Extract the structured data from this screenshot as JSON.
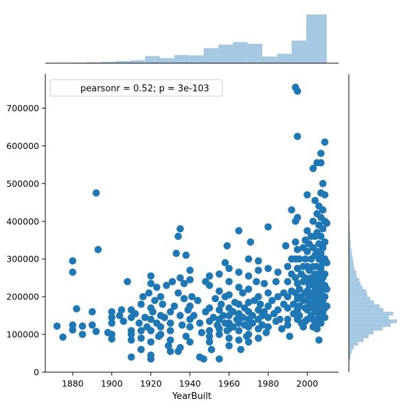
{
  "chart_data": {
    "type": "scatter",
    "xlabel": "YearBuilt",
    "ylabel": "",
    "xlim": [
      1866,
      2016
    ],
    "ylim": [
      0,
      790000
    ],
    "x_ticks": [
      1880,
      1900,
      1920,
      1940,
      1960,
      1980,
      2000
    ],
    "y_ticks": [
      0,
      100000,
      200000,
      300000,
      400000,
      500000,
      600000,
      700000
    ],
    "legend": {
      "text": "pearsonr = 0.52; p = 3e-103",
      "placement": "top-left"
    },
    "point_color": "#1f77b4",
    "hist_color": "#a6c8e0",
    "scatter_points": [
      [
        1872,
        122000
      ],
      [
        1875,
        93000
      ],
      [
        1880,
        295000
      ],
      [
        1880,
        265000
      ],
      [
        1880,
        125000
      ],
      [
        1880,
        112000
      ],
      [
        1882,
        168000
      ],
      [
        1885,
        100000
      ],
      [
        1885,
        122000
      ],
      [
        1890,
        160000
      ],
      [
        1890,
        125000
      ],
      [
        1892,
        475000
      ],
      [
        1892,
        108000
      ],
      [
        1893,
        325000
      ],
      [
        1898,
        105000
      ],
      [
        1900,
        160000
      ],
      [
        1900,
        145000
      ],
      [
        1900,
        130000
      ],
      [
        1900,
        100000
      ],
      [
        1900,
        88000
      ],
      [
        1904,
        150000
      ],
      [
        1905,
        165000
      ],
      [
        1906,
        135000
      ],
      [
        1908,
        240000
      ],
      [
        1910,
        165000
      ],
      [
        1910,
        145000
      ],
      [
        1910,
        110000
      ],
      [
        1910,
        100000
      ],
      [
        1910,
        85000
      ],
      [
        1910,
        40000
      ],
      [
        1912,
        155000
      ],
      [
        1914,
        130000
      ],
      [
        1915,
        180000
      ],
      [
        1915,
        110000
      ],
      [
        1915,
        90000
      ],
      [
        1915,
        60000
      ],
      [
        1916,
        200000
      ],
      [
        1917,
        145000
      ],
      [
        1918,
        120000
      ],
      [
        1919,
        210000
      ],
      [
        1920,
        255000
      ],
      [
        1920,
        235000
      ],
      [
        1920,
        170000
      ],
      [
        1920,
        140000
      ],
      [
        1920,
        110000
      ],
      [
        1920,
        80000
      ],
      [
        1920,
        45000
      ],
      [
        1920,
        35000
      ],
      [
        1921,
        160000
      ],
      [
        1922,
        190000
      ],
      [
        1923,
        130000
      ],
      [
        1923,
        225000
      ],
      [
        1924,
        95000
      ],
      [
        1925,
        200000
      ],
      [
        1925,
        150000
      ],
      [
        1925,
        120000
      ],
      [
        1925,
        100000
      ],
      [
        1926,
        180000
      ],
      [
        1927,
        145000
      ],
      [
        1928,
        230000
      ],
      [
        1929,
        70000
      ],
      [
        1930,
        160000
      ],
      [
        1930,
        130000
      ],
      [
        1930,
        110000
      ],
      [
        1930,
        85000
      ],
      [
        1930,
        55000
      ],
      [
        1931,
        240000
      ],
      [
        1932,
        175000
      ],
      [
        1933,
        315000
      ],
      [
        1934,
        360000
      ],
      [
        1934,
        210000
      ],
      [
        1934,
        55000
      ],
      [
        1935,
        380000
      ],
      [
        1935,
        250000
      ],
      [
        1935,
        150000
      ],
      [
        1935,
        65000
      ],
      [
        1936,
        125000
      ],
      [
        1937,
        195000
      ],
      [
        1937,
        235000
      ],
      [
        1938,
        310000
      ],
      [
        1938,
        95000
      ],
      [
        1939,
        165000
      ],
      [
        1940,
        270000
      ],
      [
        1940,
        245000
      ],
      [
        1940,
        175000
      ],
      [
        1940,
        140000
      ],
      [
        1940,
        120000
      ],
      [
        1940,
        80000
      ],
      [
        1941,
        200000
      ],
      [
        1942,
        150000
      ],
      [
        1944,
        190000
      ],
      [
        1945,
        130000
      ],
      [
        1945,
        40000
      ],
      [
        1946,
        105000
      ],
      [
        1947,
        35000
      ],
      [
        1948,
        240000
      ],
      [
        1948,
        160000
      ],
      [
        1950,
        255000
      ],
      [
        1950,
        230000
      ],
      [
        1950,
        170000
      ],
      [
        1950,
        135000
      ],
      [
        1950,
        110000
      ],
      [
        1950,
        95000
      ],
      [
        1950,
        80000
      ],
      [
        1951,
        60000
      ],
      [
        1952,
        145000
      ],
      [
        1953,
        195000
      ],
      [
        1954,
        125000
      ],
      [
        1955,
        260000
      ],
      [
        1955,
        215000
      ],
      [
        1955,
        165000
      ],
      [
        1955,
        140000
      ],
      [
        1955,
        115000
      ],
      [
        1955,
        100000
      ],
      [
        1955,
        35000
      ],
      [
        1956,
        180000
      ],
      [
        1957,
        150000
      ],
      [
        1958,
        290000
      ],
      [
        1958,
        200000
      ],
      [
        1958,
        130000
      ],
      [
        1959,
        110000
      ],
      [
        1959,
        335000
      ],
      [
        1960,
        275000
      ],
      [
        1960,
        240000
      ],
      [
        1960,
        205000
      ],
      [
        1960,
        170000
      ],
      [
        1960,
        150000
      ],
      [
        1960,
        130000
      ],
      [
        1960,
        115000
      ],
      [
        1960,
        90000
      ],
      [
        1960,
        70000
      ],
      [
        1962,
        160000
      ],
      [
        1962,
        120000
      ],
      [
        1963,
        185000
      ],
      [
        1964,
        140000
      ],
      [
        1965,
        375000
      ],
      [
        1965,
        265000
      ],
      [
        1965,
        225000
      ],
      [
        1965,
        180000
      ],
      [
        1965,
        155000
      ],
      [
        1965,
        130000
      ],
      [
        1965,
        110000
      ],
      [
        1965,
        85000
      ],
      [
        1966,
        60000
      ],
      [
        1967,
        210000
      ],
      [
        1967,
        145000
      ],
      [
        1968,
        170000
      ],
      [
        1968,
        125000
      ],
      [
        1969,
        95000
      ],
      [
        1970,
        300000
      ],
      [
        1970,
        255000
      ],
      [
        1970,
        220000
      ],
      [
        1970,
        185000
      ],
      [
        1970,
        160000
      ],
      [
        1970,
        140000
      ],
      [
        1970,
        120000
      ],
      [
        1970,
        100000
      ],
      [
        1970,
        80000
      ],
      [
        1971,
        345000
      ],
      [
        1972,
        150000
      ],
      [
        1972,
        130000
      ],
      [
        1973,
        190000
      ],
      [
        1974,
        240000
      ],
      [
        1975,
        295000
      ],
      [
        1975,
        270000
      ],
      [
        1975,
        200000
      ],
      [
        1975,
        165000
      ],
      [
        1975,
        140000
      ],
      [
        1975,
        115000
      ],
      [
        1975,
        90000
      ],
      [
        1976,
        180000
      ],
      [
        1977,
        150000
      ],
      [
        1977,
        125000
      ],
      [
        1978,
        235000
      ],
      [
        1978,
        160000
      ],
      [
        1979,
        105000
      ],
      [
        1980,
        385000
      ],
      [
        1980,
        275000
      ],
      [
        1980,
        210000
      ],
      [
        1980,
        175000
      ],
      [
        1980,
        145000
      ],
      [
        1980,
        120000
      ],
      [
        1982,
        190000
      ],
      [
        1983,
        155000
      ],
      [
        1984,
        240000
      ],
      [
        1984,
        135000
      ],
      [
        1985,
        265000
      ],
      [
        1985,
        200000
      ],
      [
        1985,
        165000
      ],
      [
        1986,
        140000
      ],
      [
        1987,
        115000
      ],
      [
        1988,
        210000
      ],
      [
        1988,
        180000
      ],
      [
        1989,
        335000
      ],
      [
        1990,
        280000
      ],
      [
        1990,
        240000
      ],
      [
        1990,
        200000
      ],
      [
        1990,
        170000
      ],
      [
        1990,
        140000
      ],
      [
        1990,
        125000
      ],
      [
        1991,
        95000
      ],
      [
        1992,
        430000
      ],
      [
        1992,
        300000
      ],
      [
        1992,
        260000
      ],
      [
        1992,
        215000
      ],
      [
        1993,
        180000
      ],
      [
        1993,
        155000
      ],
      [
        1994,
        755000
      ],
      [
        1994,
        400000
      ],
      [
        1994,
        345000
      ],
      [
        1994,
        300000
      ],
      [
        1994,
        250000
      ],
      [
        1994,
        210000
      ],
      [
        1995,
        745000
      ],
      [
        1995,
        625000
      ],
      [
        1995,
        410000
      ],
      [
        1995,
        325000
      ],
      [
        1995,
        275000
      ],
      [
        1995,
        235000
      ],
      [
        1995,
        195000
      ],
      [
        1995,
        165000
      ],
      [
        1995,
        140000
      ],
      [
        1996,
        300000
      ],
      [
        1996,
        220000
      ],
      [
        1996,
        175000
      ],
      [
        1996,
        150000
      ],
      [
        1997,
        260000
      ],
      [
        1997,
        200000
      ],
      [
        1997,
        130000
      ],
      [
        1998,
        330000
      ],
      [
        1998,
        280000
      ],
      [
        1998,
        240000
      ],
      [
        1998,
        190000
      ],
      [
        1998,
        120000
      ],
      [
        1999,
        350000
      ],
      [
        1999,
        300000
      ],
      [
        1999,
        250000
      ],
      [
        1999,
        210000
      ],
      [
        1999,
        170000
      ],
      [
        1999,
        135000
      ],
      [
        2000,
        470000
      ],
      [
        2000,
        375000
      ],
      [
        2000,
        320000
      ],
      [
        2000,
        280000
      ],
      [
        2000,
        245000
      ],
      [
        2000,
        215000
      ],
      [
        2000,
        190000
      ],
      [
        2000,
        165000
      ],
      [
        2000,
        140000
      ],
      [
        2001,
        340000
      ],
      [
        2001,
        270000
      ],
      [
        2001,
        230000
      ],
      [
        2001,
        200000
      ],
      [
        2001,
        175000
      ],
      [
        2002,
        360000
      ],
      [
        2002,
        300000
      ],
      [
        2002,
        250000
      ],
      [
        2002,
        210000
      ],
      [
        2002,
        180000
      ],
      [
        2002,
        150000
      ],
      [
        2003,
        540000
      ],
      [
        2003,
        400000
      ],
      [
        2003,
        330000
      ],
      [
        2003,
        280000
      ],
      [
        2003,
        240000
      ],
      [
        2003,
        200000
      ],
      [
        2003,
        170000
      ],
      [
        2003,
        140000
      ],
      [
        2003,
        120000
      ],
      [
        2004,
        455000
      ],
      [
        2004,
        360000
      ],
      [
        2004,
        310000
      ],
      [
        2004,
        260000
      ],
      [
        2004,
        225000
      ],
      [
        2004,
        190000
      ],
      [
        2004,
        160000
      ],
      [
        2004,
        130000
      ],
      [
        2005,
        555000
      ],
      [
        2005,
        420000
      ],
      [
        2005,
        370000
      ],
      [
        2005,
        320000
      ],
      [
        2005,
        280000
      ],
      [
        2005,
        245000
      ],
      [
        2005,
        215000
      ],
      [
        2005,
        185000
      ],
      [
        2005,
        160000
      ],
      [
        2005,
        135000
      ],
      [
        2005,
        115000
      ],
      [
        2006,
        440000
      ],
      [
        2006,
        390000
      ],
      [
        2006,
        340000
      ],
      [
        2006,
        300000
      ],
      [
        2006,
        260000
      ],
      [
        2006,
        230000
      ],
      [
        2006,
        200000
      ],
      [
        2006,
        170000
      ],
      [
        2006,
        145000
      ],
      [
        2006,
        85000
      ],
      [
        2007,
        580000
      ],
      [
        2007,
        555000
      ],
      [
        2007,
        475000
      ],
      [
        2007,
        410000
      ],
      [
        2007,
        360000
      ],
      [
        2007,
        315000
      ],
      [
        2007,
        275000
      ],
      [
        2007,
        240000
      ],
      [
        2007,
        210000
      ],
      [
        2007,
        180000
      ],
      [
        2007,
        155000
      ],
      [
        2007,
        130000
      ],
      [
        2008,
        500000
      ],
      [
        2008,
        430000
      ],
      [
        2008,
        380000
      ],
      [
        2008,
        330000
      ],
      [
        2008,
        290000
      ],
      [
        2008,
        250000
      ],
      [
        2008,
        220000
      ],
      [
        2008,
        190000
      ],
      [
        2008,
        160000
      ],
      [
        2009,
        610000
      ],
      [
        2009,
        470000
      ],
      [
        2009,
        400000
      ],
      [
        2009,
        345000
      ],
      [
        2009,
        300000
      ],
      [
        2009,
        260000
      ],
      [
        2009,
        230000
      ],
      [
        2009,
        200000
      ],
      [
        2009,
        170000
      ],
      [
        2009,
        145000
      ],
      [
        2010,
        395000
      ],
      [
        2010,
        290000
      ],
      [
        2010,
        220000
      ],
      [
        2010,
        175000
      ]
    ],
    "x_hist": {
      "bin_edges": [
        1872,
        1879.5,
        1887,
        1894.5,
        1902,
        1909.5,
        1917,
        1924.5,
        1932,
        1939.5,
        1947,
        1954.5,
        1962,
        1969.5,
        1977,
        1984.5,
        1992,
        1999.5,
        2010
      ],
      "densities": [
        0.0003,
        0.0007,
        0.0013,
        0.0023,
        0.0037,
        0.0051,
        0.0123,
        0.0088,
        0.0141,
        0.0135,
        0.0259,
        0.0321,
        0.0366,
        0.0336,
        0.0115,
        0.0163,
        0.0391,
        0.0843
      ]
    },
    "y_hist": {
      "bin_width": 10000,
      "bin_starts": [
        30000,
        40000,
        50000,
        60000,
        70000,
        80000,
        90000,
        100000,
        110000,
        120000,
        130000,
        140000,
        150000,
        160000,
        170000,
        180000,
        190000,
        200000,
        210000,
        220000,
        230000,
        240000,
        250000,
        260000,
        270000,
        280000,
        290000,
        300000,
        310000,
        320000,
        330000,
        340000,
        350000,
        360000,
        370000,
        380000,
        390000,
        400000
      ],
      "densities": [
        0.2,
        0.3,
        0.5,
        0.8,
        1.5,
        2.4,
        3.2,
        4.0,
        5.5,
        6.8,
        7.8,
        6.5,
        7.2,
        5.6,
        5.0,
        4.1,
        3.5,
        3.0,
        2.8,
        2.2,
        1.9,
        1.7,
        1.3,
        1.2,
        0.9,
        0.8,
        0.7,
        0.6,
        0.5,
        0.4,
        0.3,
        0.3,
        0.2,
        0.2,
        0.15,
        0.1,
        0.1,
        0.05
      ]
    }
  }
}
